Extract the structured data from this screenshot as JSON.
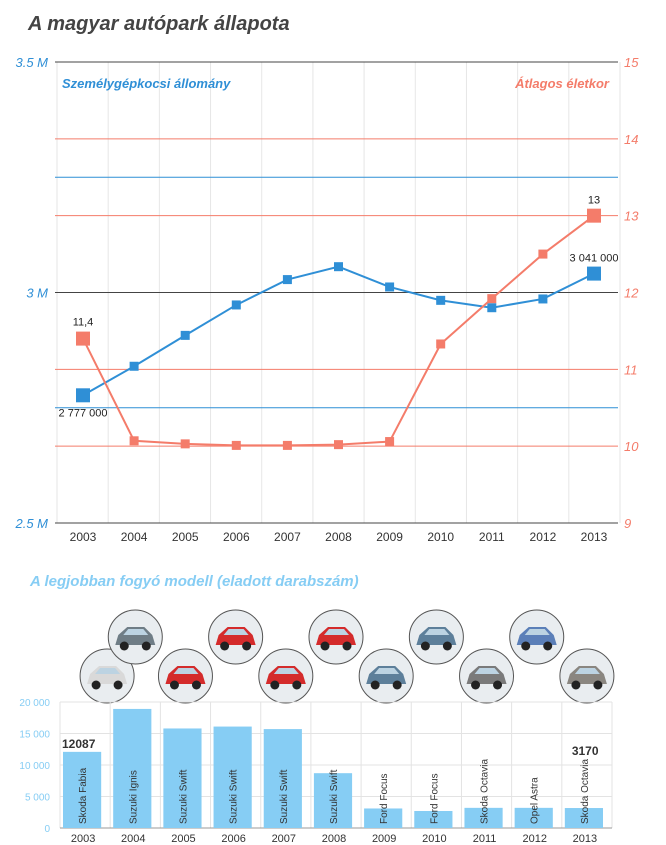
{
  "title": "A magyar autópark állapota",
  "colors": {
    "blue": "#2f8fd6",
    "salmon": "#f47c6a",
    "lightblue": "#86cdf4",
    "title": "#444444"
  },
  "chart_data": [
    {
      "type": "line",
      "title": "A magyar autópark állapota",
      "categories": [
        "2003",
        "2004",
        "2005",
        "2006",
        "2007",
        "2008",
        "2009",
        "2010",
        "2011",
        "2012",
        "2013"
      ],
      "left_axis": {
        "label": "Személygépkocsi állomány",
        "ticks": [
          "3.5 M",
          "3 M",
          "2.5 M"
        ],
        "ylim": [
          2500000,
          3500000
        ]
      },
      "right_axis": {
        "label": "Átlagos életkor",
        "ticks": [
          "15",
          "14",
          "13",
          "12",
          "11",
          "10",
          "9"
        ],
        "ylim": [
          9,
          15
        ]
      },
      "series": [
        {
          "name": "Személygépkocsi állomány",
          "axis": "left",
          "values": [
            2777000,
            2840000,
            2907000,
            2973000,
            3028000,
            3056000,
            3012000,
            2983000,
            2967000,
            2986000,
            3041000
          ]
        },
        {
          "name": "Átlagos életkor",
          "axis": "right",
          "values": [
            11.4,
            10.07,
            10.03,
            10.01,
            10.01,
            10.02,
            10.06,
            11.33,
            11.92,
            12.5,
            13.0
          ]
        }
      ],
      "data_labels": {
        "first_left": "2 777 000",
        "last_left": "3 041 000",
        "first_right": "11,4",
        "last_right": "13"
      },
      "grid": true
    },
    {
      "type": "bar",
      "title": "A legjobban fogyó modell (eladott darabszám)",
      "categories": [
        "2003",
        "2004",
        "2005",
        "2006",
        "2007",
        "2008",
        "2009",
        "2010",
        "2011",
        "2012",
        "2013"
      ],
      "models": [
        "Skoda Fabia",
        "Suzuki Ignis",
        "Suzuki Swift",
        "Suzuki Swift",
        "Suzuki Swift",
        "Suzuki Swift",
        "Ford Focus",
        "Ford Focus",
        "Skoda Octavia",
        "Opel Astra",
        "Skoda Octavia"
      ],
      "values": [
        12087,
        18900,
        15800,
        16100,
        15700,
        8700,
        3100,
        2700,
        3200,
        3200,
        3170
      ],
      "ylim": [
        0,
        20000
      ],
      "yticks": [
        "20 000",
        "15 000",
        "10 000",
        "5 000",
        "0"
      ],
      "value_labels": {
        "first": "12087",
        "last": "3170"
      },
      "grid": true
    }
  ]
}
